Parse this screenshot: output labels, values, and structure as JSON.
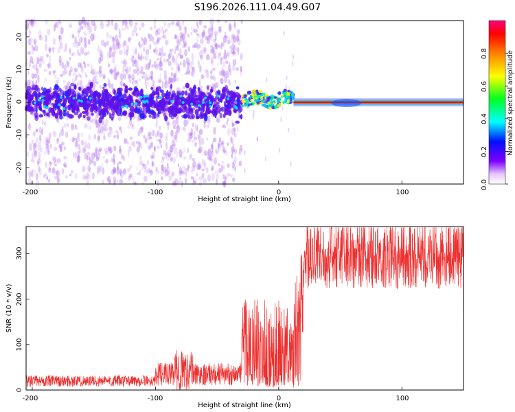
{
  "title": "S196.2026.111.04.49.G07",
  "chart_data": [
    {
      "type": "heatmap",
      "xlabel": "Height of straight line (km)",
      "ylabel": "Frequency (Hz)",
      "xlim": [
        -205,
        150
      ],
      "ylim": [
        -25,
        25
      ],
      "x_ticks": [
        "-200",
        "-100",
        "0",
        "100"
      ],
      "y_ticks": [
        "20",
        "10",
        "0",
        "-10",
        "-20"
      ],
      "colorbar": {
        "label": "Normalized spectral amplitude",
        "range": [
          0,
          1
        ],
        "ticks": [
          "0.0",
          "0.2",
          "0.4",
          "0.6",
          "0.8"
        ]
      },
      "regions": [
        {
          "x_range": [
            -205,
            -30
          ],
          "description": "scattered noise",
          "center_freq": 0,
          "spread_hz": 25
        },
        {
          "x_range": [
            -30,
            12
          ],
          "description": "fragmented band",
          "center_freq": 0.8
        },
        {
          "x_range": [
            12,
            150
          ],
          "description": "strong coherent line",
          "center_freq": 0
        }
      ]
    },
    {
      "type": "line",
      "xlabel": "Height of straight line (km)",
      "ylabel": "SNR (10 * v/v)",
      "xlim": [
        -205,
        150
      ],
      "ylim": [
        0,
        360
      ],
      "x_ticks": [
        "-200",
        "-100",
        "0",
        "100"
      ],
      "y_ticks": [
        "300",
        "200",
        "100",
        "0"
      ],
      "color": "#ee3030",
      "segments": [
        {
          "x_range": [
            -205,
            -100
          ],
          "baseline": 15,
          "amplitude": 25
        },
        {
          "x_range": [
            -100,
            -30
          ],
          "baseline": 25,
          "amplitude": 50
        },
        {
          "x_range": [
            -30,
            18
          ],
          "baseline": 80,
          "amplitude": 170
        },
        {
          "x_range": [
            18,
            150
          ],
          "baseline": 250,
          "amplitude": 90
        }
      ]
    }
  ]
}
